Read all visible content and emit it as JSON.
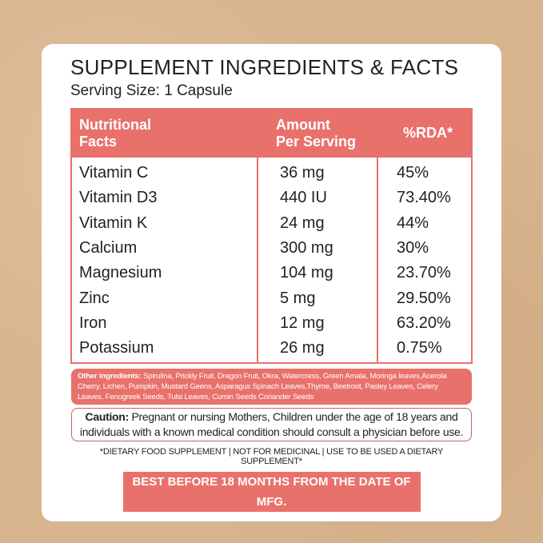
{
  "title": "SUPPLEMENT INGREDIENTS & FACTS",
  "serving_size": "Serving Size: 1 Capsule",
  "table": {
    "headers": {
      "nutrient_line1": "Nutritional",
      "nutrient_line2": "Facts",
      "amount_line1": "Amount",
      "amount_line2": "Per Serving",
      "rda": "%RDA*"
    },
    "rows": [
      {
        "name": "Vitamin C",
        "amount": "36 mg",
        "rda": "45%"
      },
      {
        "name": "Vitamin D3",
        "amount": "440 IU",
        "rda": "73.40%"
      },
      {
        "name": "Vitamin K",
        "amount": "24 mg",
        "rda": "44%"
      },
      {
        "name": "Calcium",
        "amount": "300 mg",
        "rda": "30%"
      },
      {
        "name": "Magnesium",
        "amount": "104 mg",
        "rda": "23.70%"
      },
      {
        "name": "Zinc",
        "amount": "5 mg",
        "rda": "29.50%"
      },
      {
        "name": "Iron",
        "amount": "12 mg",
        "rda": "63.20%"
      },
      {
        "name": "Potassium",
        "amount": "26 mg",
        "rda": "0.75%"
      }
    ]
  },
  "other_ingredients": {
    "label": "Other ingredients:",
    "text": " Spirulina, Prickly Fruit, Dragon Fruit, Okra, Watercress, Green Amala, Moringa leaves,Acerola Cherry, Lichen, Pumpkin, Mustard Geens, Asparagus Spinach Leaves,Thyme, Beetroot, Pasley Leaves, Celery Leaves, Fenugreek Seeds, Tulsi Leaves, Cumin Seeds Coriander Seeds"
  },
  "caution": {
    "label": "Caution:",
    "text": " Pregnant or nursing Mothers, Children under the age of 18 years and individuals with a known medical condition should consult a physician before use."
  },
  "dietary_note": "*DIETARY FOOD SUPPLEMENT | NOT FOR MEDICINAL | USE TO BE USED A DIETARY SUPPLEMENT*",
  "best_before": "BEST BEFORE 18 MONTHS FROM THE DATE OF MFG.",
  "colors": {
    "accent": "#e9716b",
    "background": "#d8b58f"
  }
}
